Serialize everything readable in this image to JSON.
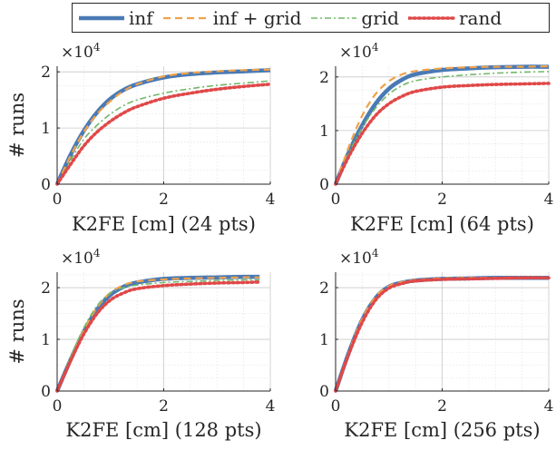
{
  "legend": {
    "items": [
      {
        "label": "inf",
        "color": "#4a7ab5",
        "style": "solid"
      },
      {
        "label": "inf + grid",
        "color": "#f0a24a",
        "style": "dashed"
      },
      {
        "label": "grid",
        "color": "#72b86a",
        "style": "dashdot"
      },
      {
        "label": "rand",
        "color": "#e04848",
        "style": "dotted"
      }
    ]
  },
  "chart_data": [
    {
      "type": "line",
      "xlabel": "K2FE [cm] (24 pts)",
      "ylabel": "# runs",
      "y_multiplier": "×10^4",
      "xlim": [
        0,
        4
      ],
      "ylim": [
        0,
        2.1
      ],
      "xticks": [
        "0",
        "2",
        "4"
      ],
      "yticks": [
        "0",
        "1",
        "2"
      ],
      "grid": true,
      "x": [
        0,
        0.25,
        0.5,
        0.75,
        1,
        1.25,
        1.5,
        2,
        2.5,
        3,
        3.5,
        4
      ],
      "series": [
        {
          "name": "inf",
          "values": [
            0,
            0.52,
            0.95,
            1.28,
            1.52,
            1.68,
            1.78,
            1.9,
            1.96,
            1.99,
            2.01,
            2.03
          ]
        },
        {
          "name": "inf + grid",
          "values": [
            0,
            0.5,
            0.93,
            1.25,
            1.48,
            1.66,
            1.78,
            1.92,
            1.98,
            2.01,
            2.03,
            2.04
          ]
        },
        {
          "name": "grid",
          "values": [
            0,
            0.42,
            0.8,
            1.05,
            1.25,
            1.4,
            1.5,
            1.62,
            1.7,
            1.76,
            1.8,
            1.84
          ]
        },
        {
          "name": "rand",
          "values": [
            0,
            0.35,
            0.68,
            0.93,
            1.12,
            1.27,
            1.38,
            1.53,
            1.62,
            1.69,
            1.74,
            1.78
          ]
        }
      ]
    },
    {
      "type": "line",
      "xlabel": "K2FE [cm] (64 pts)",
      "ylabel": "",
      "y_multiplier": "×10^4",
      "xlim": [
        0,
        4
      ],
      "ylim": [
        0,
        2.2
      ],
      "xticks": [
        "0",
        "2",
        "4"
      ],
      "yticks": [
        "0",
        "1",
        "2"
      ],
      "grid": true,
      "x": [
        0,
        0.25,
        0.5,
        0.75,
        1,
        1.25,
        1.5,
        2,
        2.5,
        3,
        3.5,
        4
      ],
      "series": [
        {
          "name": "inf",
          "values": [
            0,
            0.6,
            1.1,
            1.5,
            1.78,
            1.95,
            2.05,
            2.13,
            2.16,
            2.18,
            2.19,
            2.19
          ]
        },
        {
          "name": "inf + grid",
          "values": [
            0,
            0.7,
            1.28,
            1.68,
            1.92,
            2.05,
            2.11,
            2.16,
            2.18,
            2.19,
            2.19,
            2.2
          ]
        },
        {
          "name": "grid",
          "values": [
            0,
            0.58,
            1.05,
            1.42,
            1.68,
            1.84,
            1.93,
            2.0,
            2.04,
            2.07,
            2.09,
            2.1
          ]
        },
        {
          "name": "rand",
          "values": [
            0,
            0.52,
            0.95,
            1.28,
            1.5,
            1.64,
            1.73,
            1.81,
            1.84,
            1.86,
            1.87,
            1.88
          ]
        }
      ]
    },
    {
      "type": "line",
      "xlabel": "K2FE [cm] (128 pts)",
      "ylabel": "# runs",
      "y_multiplier": "×10^4",
      "xlim": [
        0,
        4
      ],
      "ylim": [
        0,
        2.3
      ],
      "xticks": [
        "0",
        "2",
        "4"
      ],
      "yticks": [
        "0",
        "1",
        "2"
      ],
      "grid": true,
      "x": [
        0,
        0.25,
        0.5,
        0.75,
        1,
        1.25,
        1.5,
        2,
        2.5,
        3,
        3.5,
        3.8
      ],
      "series": [
        {
          "name": "inf",
          "values": [
            0,
            0.6,
            1.15,
            1.58,
            1.86,
            2.02,
            2.1,
            2.17,
            2.19,
            2.2,
            2.21,
            2.21
          ]
        },
        {
          "name": "inf + grid",
          "values": [
            0,
            0.62,
            1.18,
            1.62,
            1.9,
            2.05,
            2.12,
            2.16,
            2.18,
            2.19,
            2.2,
            2.2
          ]
        },
        {
          "name": "grid",
          "values": [
            0,
            0.65,
            1.22,
            1.65,
            1.9,
            2.0,
            2.05,
            2.1,
            2.12,
            2.14,
            2.15,
            2.15
          ]
        },
        {
          "name": "rand",
          "values": [
            0,
            0.58,
            1.1,
            1.5,
            1.76,
            1.9,
            1.98,
            2.04,
            2.07,
            2.09,
            2.1,
            2.11
          ]
        }
      ]
    },
    {
      "type": "line",
      "xlabel": "K2FE [cm] (256 pts)",
      "ylabel": "",
      "y_multiplier": "×10^4",
      "xlim": [
        0,
        4
      ],
      "ylim": [
        0,
        2.3
      ],
      "xticks": [
        "0",
        "2",
        "4"
      ],
      "yticks": [
        "0",
        "1",
        "2"
      ],
      "grid": true,
      "x": [
        0,
        0.25,
        0.5,
        0.75,
        1,
        1.25,
        1.5,
        2,
        2.5,
        3,
        3.5,
        4
      ],
      "series": [
        {
          "name": "inf",
          "values": [
            0,
            0.75,
            1.38,
            1.8,
            2.02,
            2.1,
            2.14,
            2.17,
            2.18,
            2.19,
            2.19,
            2.19
          ]
        },
        {
          "name": "inf + grid",
          "values": [
            0,
            0.76,
            1.4,
            1.82,
            2.03,
            2.11,
            2.15,
            2.18,
            2.19,
            2.19,
            2.2,
            2.2
          ]
        },
        {
          "name": "grid",
          "values": [
            0,
            0.74,
            1.36,
            1.78,
            2.0,
            2.09,
            2.13,
            2.16,
            2.18,
            2.18,
            2.19,
            2.19
          ]
        },
        {
          "name": "rand",
          "values": [
            0,
            0.72,
            1.33,
            1.76,
            1.99,
            2.08,
            2.13,
            2.16,
            2.17,
            2.18,
            2.19,
            2.19
          ]
        }
      ]
    }
  ]
}
